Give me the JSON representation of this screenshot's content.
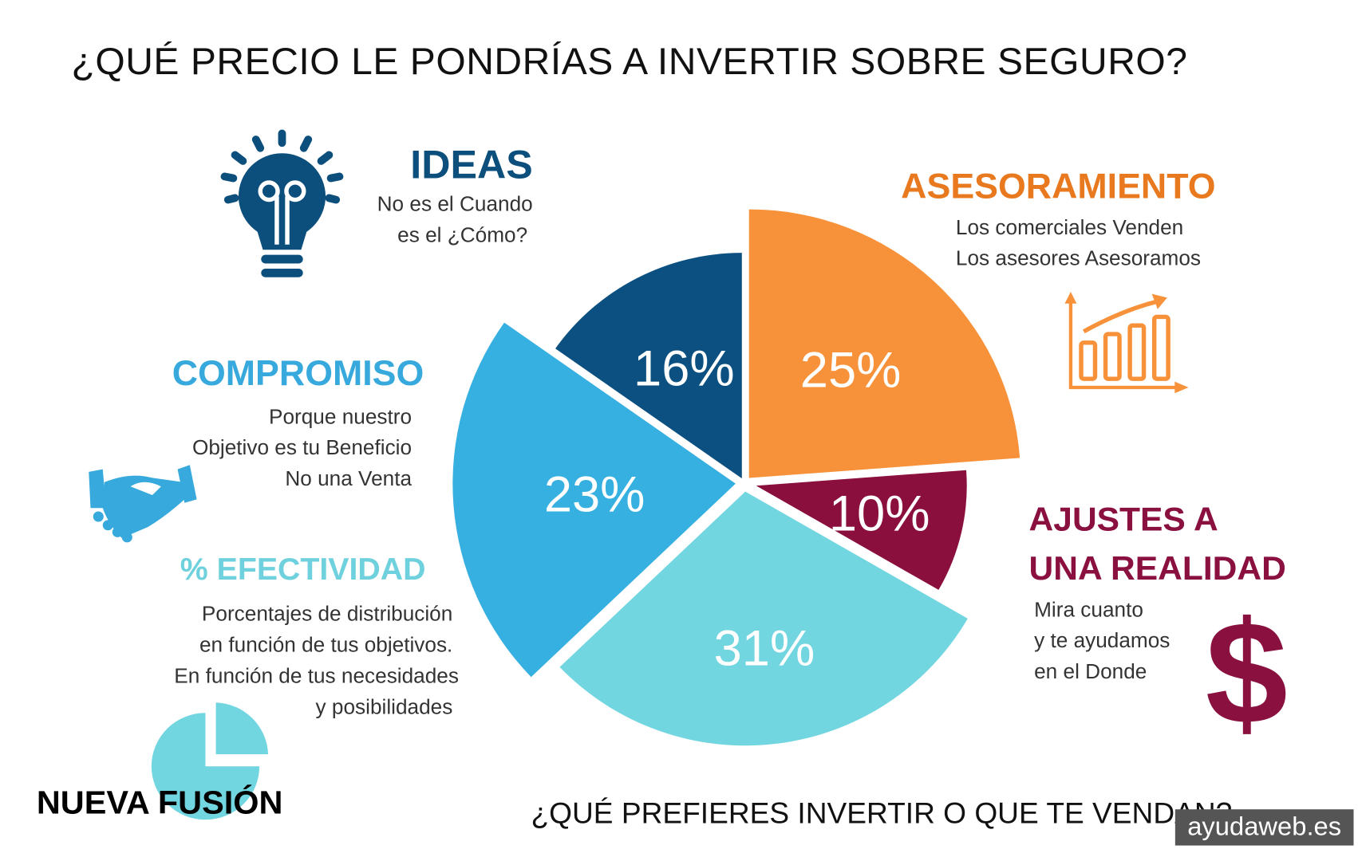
{
  "title": "¿QUÉ PRECIO LE PONDRÍAS A INVERTIR SOBRE SEGURO?",
  "footer_question": "¿QUÉ PREFIERES INVERTIR O QUE TE VENDAN?",
  "brand": "NUEVA FUSIÓN",
  "watermark": "ayudaweb.es",
  "sections": {
    "ideas": {
      "heading": "IDEAS",
      "lines": [
        "No es el Cuando",
        "es el ¿Cómo?"
      ],
      "color": "#0d4f7c",
      "icon": "lightbulb-icon"
    },
    "asesoramiento": {
      "heading": "ASESORAMIENTO",
      "lines": [
        "Los comerciales Venden",
        "Los asesores Asesoramos"
      ],
      "color": "#e8791f",
      "icon": "bar-chart-growth-icon"
    },
    "compromiso": {
      "heading": "COMPROMISO",
      "lines": [
        "Porque nuestro",
        "Objetivo es tu Beneficio",
        "No una Venta"
      ],
      "color": "#37a9dc",
      "icon": "handshake-icon"
    },
    "efectividad": {
      "heading": "% EFECTIVIDAD",
      "lines": [
        "Porcentajes de distribución",
        "en función de tus objetivos.",
        "En función de tus necesidades",
        "y posibilidades"
      ],
      "color": "#6fd1dd",
      "icon": "pie-chart-icon"
    },
    "ajustes": {
      "heading_lines": [
        "AJUSTES A",
        "UNA REALIDAD"
      ],
      "lines": [
        "Mira cuanto",
        "y te ayudamos",
        "en el Donde"
      ],
      "color": "#8a1040",
      "icon": "dollar-icon"
    }
  },
  "chart_data": {
    "type": "pie",
    "title": "¿QUÉ PRECIO LE PONDRÍAS A INVERTIR SOBRE SEGURO?",
    "exploded": true,
    "slices": [
      {
        "name": "ASESORAMIENTO",
        "value": 25,
        "label": "25%",
        "color": "#f7923a"
      },
      {
        "name": "AJUSTES A UNA REALIDAD",
        "value": 10,
        "label": "10%",
        "color": "#8a0f3d"
      },
      {
        "name": "% EFECTIVIDAD",
        "value": 31,
        "label": "31%",
        "color": "#72d6e0"
      },
      {
        "name": "COMPROMISO",
        "value": 23,
        "label": "23%",
        "color": "#36afe1"
      },
      {
        "name": "IDEAS",
        "value": 16,
        "label": "16%",
        "color": "#0b5080"
      }
    ]
  }
}
